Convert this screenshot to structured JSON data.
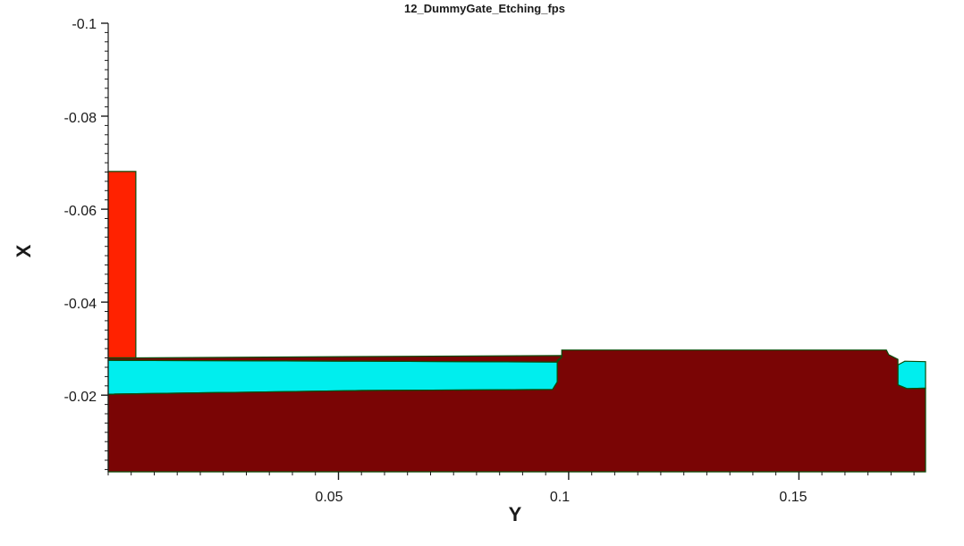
{
  "chart_data": {
    "type": "area",
    "title": "12_DummyGate_Etching_fps",
    "xlabel": "Y",
    "ylabel": "X",
    "x_ticks": [
      "0.05",
      "0.1",
      "0.15"
    ],
    "y_ticks": [
      "-0.1",
      "-0.08",
      "-0.06",
      "-0.04",
      "-0.02"
    ],
    "xlim": [
      0.0,
      0.1775
    ],
    "ylim": [
      -0.1,
      -0.0035
    ],
    "series": [
      {
        "values": [
          [
            0.0,
            -0.0035
          ],
          [
            0.0,
            -0.0202
          ],
          [
            0.055,
            -0.021
          ],
          [
            0.0965,
            -0.0212
          ],
          [
            0.0975,
            -0.0228
          ],
          [
            0.0975,
            -0.0275
          ],
          [
            0.0985,
            -0.0282
          ],
          [
            0.0985,
            -0.0297
          ],
          [
            0.169,
            -0.0297
          ],
          [
            0.1695,
            -0.0287
          ],
          [
            0.1715,
            -0.0277
          ],
          [
            0.1715,
            -0.0222
          ],
          [
            0.1735,
            -0.0214
          ],
          [
            0.1775,
            -0.0215
          ],
          [
            0.1775,
            -0.0035
          ]
        ],
        "color": "#7a0505"
      },
      {
        "values": [
          [
            0.0,
            -0.0202
          ],
          [
            0.055,
            -0.021
          ],
          [
            0.0965,
            -0.0212
          ],
          [
            0.0975,
            -0.0228
          ],
          [
            0.0975,
            -0.0271
          ],
          [
            0.055,
            -0.0273
          ],
          [
            0.0,
            -0.0275
          ]
        ],
        "color": "#00eeee"
      },
      {
        "values": [
          [
            0.1715,
            -0.0222
          ],
          [
            0.1735,
            -0.0214
          ],
          [
            0.1775,
            -0.0215
          ],
          [
            0.1775,
            -0.0272
          ],
          [
            0.173,
            -0.0273
          ],
          [
            0.1715,
            -0.0265
          ]
        ],
        "color": "#00eeee"
      },
      {
        "values": [
          [
            0.0,
            -0.028
          ],
          [
            0.006,
            -0.028
          ],
          [
            0.006,
            -0.0681
          ],
          [
            0.0,
            -0.0681
          ]
        ],
        "color": "#ff2200"
      },
      {
        "values": [
          [
            0.0,
            -0.0275
          ],
          [
            0.055,
            -0.0273
          ],
          [
            0.0975,
            -0.0271
          ],
          [
            0.0985,
            -0.0282
          ],
          [
            0.0985,
            -0.0285
          ],
          [
            0.055,
            -0.0283
          ],
          [
            0.006,
            -0.028
          ],
          [
            0.0,
            -0.028
          ]
        ],
        "color": "#7a0505"
      }
    ]
  }
}
